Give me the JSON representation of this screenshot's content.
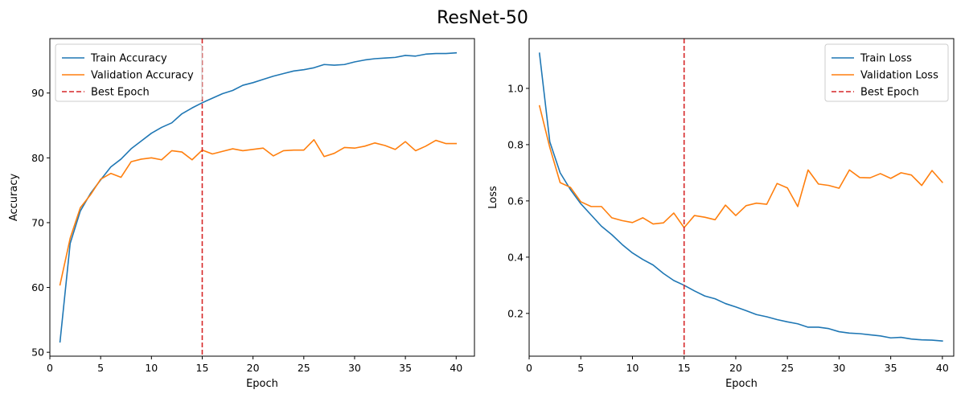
{
  "figure": {
    "title": "ResNet-50"
  },
  "colors": {
    "train": "#1f77b4",
    "validation": "#ff7f0e",
    "best": "#d62728"
  },
  "chart_data": [
    {
      "type": "line",
      "title": "",
      "xlabel": "Epoch",
      "ylabel": "Accuracy",
      "xlim": [
        0,
        41.8
      ],
      "ylim": [
        49.4,
        98.4
      ],
      "xticks": [
        0,
        5,
        10,
        15,
        20,
        25,
        30,
        35,
        40
      ],
      "yticks": [
        50,
        60,
        70,
        80,
        90
      ],
      "legend_position": "top-left",
      "grid": false,
      "x": [
        1,
        2,
        3,
        4,
        5,
        6,
        7,
        8,
        9,
        10,
        11,
        12,
        13,
        14,
        15,
        16,
        17,
        18,
        19,
        20,
        21,
        22,
        23,
        24,
        25,
        26,
        27,
        28,
        29,
        30,
        31,
        32,
        33,
        34,
        35,
        36,
        37,
        38,
        39,
        40
      ],
      "series": [
        {
          "name": "Train Accuracy",
          "color": "#1f77b4",
          "style": "solid",
          "values": [
            51.6,
            66.8,
            71.8,
            74.5,
            76.6,
            78.6,
            79.8,
            81.4,
            82.6,
            83.8,
            84.7,
            85.4,
            86.8,
            87.7,
            88.5,
            89.2,
            89.9,
            90.4,
            91.2,
            91.6,
            92.1,
            92.6,
            93.0,
            93.4,
            93.6,
            93.9,
            94.4,
            94.3,
            94.4,
            94.8,
            95.1,
            95.3,
            95.4,
            95.5,
            95.8,
            95.7,
            96.0,
            96.1,
            96.1,
            96.2
          ]
        },
        {
          "name": "Validation Accuracy",
          "color": "#ff7f0e",
          "style": "solid",
          "values": [
            60.4,
            67.6,
            72.3,
            74.3,
            76.7,
            77.6,
            77.0,
            79.4,
            79.8,
            80.0,
            79.7,
            81.1,
            80.9,
            79.7,
            81.2,
            80.6,
            81.0,
            81.4,
            81.1,
            81.3,
            81.5,
            80.3,
            81.1,
            81.2,
            81.2,
            82.8,
            80.2,
            80.7,
            81.6,
            81.5,
            81.8,
            82.3,
            81.9,
            81.3,
            82.5,
            81.1,
            81.8,
            82.7,
            82.2,
            82.2
          ]
        }
      ],
      "markers": [
        {
          "name": "Best Epoch",
          "x": 15,
          "color": "#d62728",
          "style": "dashed"
        }
      ]
    },
    {
      "type": "line",
      "title": "",
      "xlabel": "Epoch",
      "ylabel": "Loss",
      "xlim": [
        0,
        41.1
      ],
      "ylim": [
        0.048,
        1.177
      ],
      "xticks": [
        0,
        5,
        10,
        15,
        20,
        25,
        30,
        35,
        40
      ],
      "yticks": [
        0.2,
        0.4,
        0.6,
        0.8,
        1.0
      ],
      "ytick_labels": [
        "0.2",
        "0.4",
        "0.6",
        "0.8",
        "1.0"
      ],
      "legend_position": "top-right",
      "grid": false,
      "x": [
        1,
        2,
        3,
        4,
        5,
        6,
        7,
        8,
        9,
        10,
        11,
        12,
        13,
        14,
        15,
        16,
        17,
        18,
        19,
        20,
        21,
        22,
        23,
        24,
        25,
        26,
        27,
        28,
        29,
        30,
        31,
        32,
        33,
        34,
        35,
        36,
        37,
        38,
        39,
        40
      ],
      "series": [
        {
          "name": "Train Loss",
          "color": "#1f77b4",
          "style": "solid",
          "values": [
            1.125,
            0.81,
            0.7,
            0.64,
            0.59,
            0.55,
            0.51,
            0.48,
            0.445,
            0.415,
            0.392,
            0.372,
            0.342,
            0.317,
            0.3,
            0.28,
            0.262,
            0.252,
            0.235,
            0.223,
            0.21,
            0.196,
            0.188,
            0.178,
            0.17,
            0.163,
            0.151,
            0.151,
            0.146,
            0.135,
            0.13,
            0.128,
            0.124,
            0.12,
            0.113,
            0.115,
            0.109,
            0.106,
            0.105,
            0.102
          ]
        },
        {
          "name": "Validation Loss",
          "color": "#ff7f0e",
          "style": "solid",
          "values": [
            0.938,
            0.79,
            0.665,
            0.648,
            0.597,
            0.58,
            0.58,
            0.54,
            0.53,
            0.523,
            0.54,
            0.518,
            0.522,
            0.557,
            0.505,
            0.548,
            0.542,
            0.533,
            0.585,
            0.548,
            0.583,
            0.592,
            0.588,
            0.662,
            0.646,
            0.58,
            0.71,
            0.66,
            0.655,
            0.645,
            0.71,
            0.683,
            0.682,
            0.697,
            0.68,
            0.7,
            0.692,
            0.655,
            0.708,
            0.666
          ]
        }
      ],
      "markers": [
        {
          "name": "Best Epoch",
          "x": 15,
          "color": "#d62728",
          "style": "dashed"
        }
      ]
    }
  ]
}
